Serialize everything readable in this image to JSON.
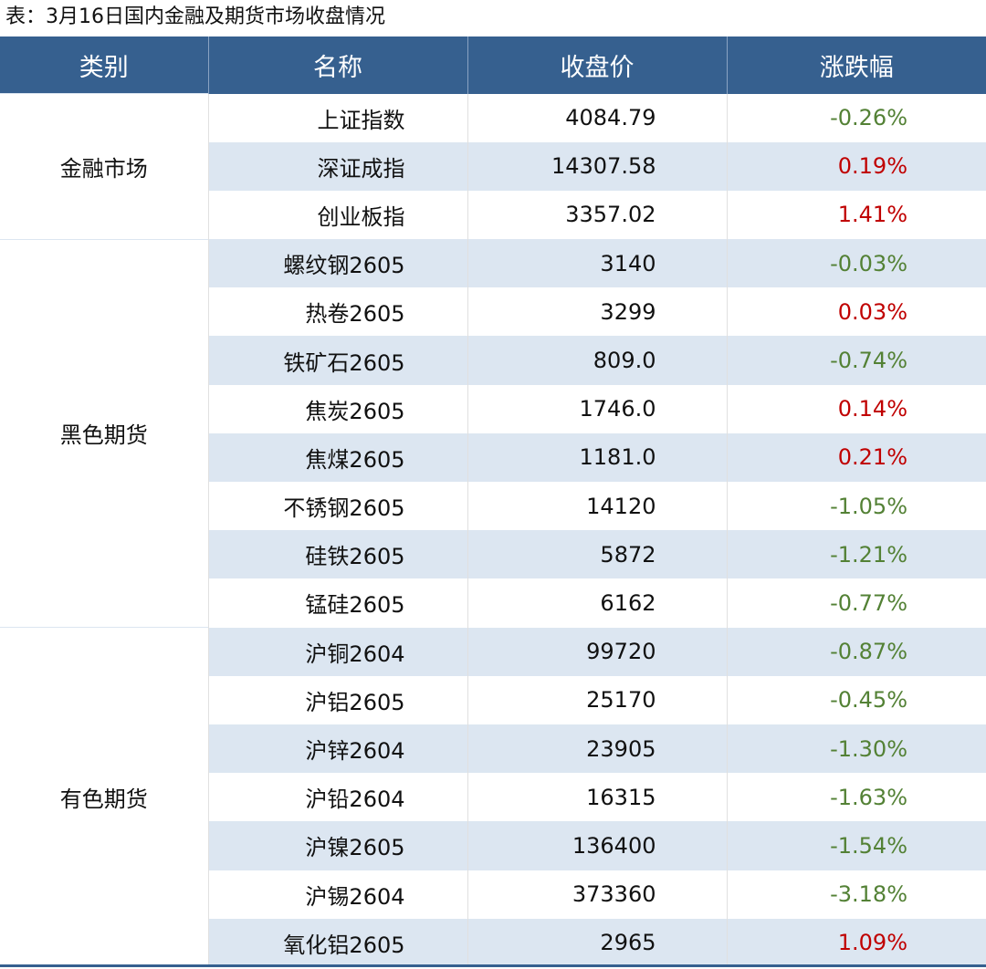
{
  "title": "表：3月16日国内金融及期货市场收盘情况",
  "headers": [
    "类别",
    "名称",
    "收盘价",
    "涨跌幅"
  ],
  "colors": {
    "header": "#36608f",
    "band": "#dce6f1",
    "up": "#c00000",
    "down": "#538135"
  },
  "groups": [
    {
      "category": "金融市场",
      "rows": [
        {
          "name": "上证指数",
          "close": "4084.79",
          "change": "-0.26%"
        },
        {
          "name": "深证成指",
          "close": "14307.58",
          "change": "0.19%"
        },
        {
          "name": "创业板指",
          "close": "3357.02",
          "change": "1.41%"
        }
      ]
    },
    {
      "category": "黑色期货",
      "rows": [
        {
          "name": "螺纹钢2605",
          "close": "3140",
          "change": "-0.03%"
        },
        {
          "name": "热卷2605",
          "close": "3299",
          "change": "0.03%"
        },
        {
          "name": "铁矿石2605",
          "close": "809.0",
          "change": "-0.74%"
        },
        {
          "name": "焦炭2605",
          "close": "1746.0",
          "change": "0.14%"
        },
        {
          "name": "焦煤2605",
          "close": "1181.0",
          "change": "0.21%"
        },
        {
          "name": "不锈钢2605",
          "close": "14120",
          "change": "-1.05%"
        },
        {
          "name": "硅铁2605",
          "close": "5872",
          "change": "-1.21%"
        },
        {
          "name": "锰硅2605",
          "close": "6162",
          "change": "-0.77%"
        }
      ]
    },
    {
      "category": "有色期货",
      "rows": [
        {
          "name": "沪铜2604",
          "close": "99720",
          "change": "-0.87%"
        },
        {
          "name": "沪铝2605",
          "close": "25170",
          "change": "-0.45%"
        },
        {
          "name": "沪锌2604",
          "close": "23905",
          "change": "-1.30%"
        },
        {
          "name": "沪铅2604",
          "close": "16315",
          "change": "-1.63%"
        },
        {
          "name": "沪镍2605",
          "close": "136400",
          "change": "-1.54%"
        },
        {
          "name": "沪锡2604",
          "close": "373360",
          "change": "-3.18%"
        },
        {
          "name": "氧化铝2605",
          "close": "2965",
          "change": "1.09%"
        }
      ]
    }
  ]
}
